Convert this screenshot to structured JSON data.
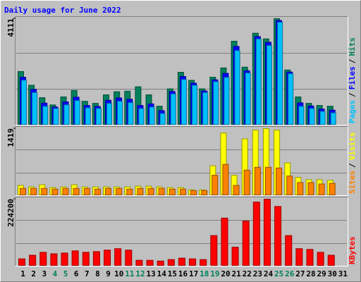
{
  "chart_data": [
    {
      "type": "bar",
      "title": "Daily usage for June 2022",
      "categories": [
        "1",
        "2",
        "3",
        "4",
        "5",
        "6",
        "7",
        "8",
        "9",
        "10",
        "11",
        "12",
        "13",
        "14",
        "15",
        "16",
        "17",
        "18",
        "19",
        "20",
        "21",
        "22",
        "23",
        "24",
        "25",
        "26",
        "27",
        "28",
        "29",
        "30",
        "31"
      ],
      "category_colors": [
        "#000000",
        "#000000",
        "#000000",
        "#00805c",
        "#00805c",
        "#000000",
        "#000000",
        "#000000",
        "#000000",
        "#000000",
        "#00805c",
        "#00805c",
        "#000000",
        "#000000",
        "#000000",
        "#000000",
        "#000000",
        "#00805c",
        "#00805c",
        "#000000",
        "#000000",
        "#000000",
        "#000000",
        "#000000",
        "#00805c",
        "#00805c",
        "#000000",
        "#000000",
        "#000000",
        "#000000",
        "#000000"
      ],
      "legend_separator": "/",
      "ylim": [
        0,
        4111
      ],
      "yticks": [
        4111
      ],
      "series": [
        {
          "name": "Hits",
          "color": "#00805c",
          "values": [
            2070,
            1540,
            1060,
            780,
            1090,
            1340,
            920,
            840,
            1170,
            1290,
            1310,
            1480,
            1170,
            730,
            1400,
            2040,
            1730,
            1400,
            1850,
            2210,
            3240,
            2240,
            3550,
            3330,
            4111,
            2130,
            1090,
            840,
            760,
            730,
            null
          ]
        },
        {
          "name": "Files",
          "color": "#0000ff",
          "values": [
            1850,
            1380,
            850,
            700,
            900,
            1080,
            760,
            720,
            960,
            1050,
            1000,
            760,
            820,
            560,
            1300,
            1880,
            1620,
            1320,
            1750,
            2000,
            3040,
            2100,
            3420,
            3200,
            4040,
            2050,
            860,
            740,
            620,
            580,
            null
          ]
        },
        {
          "name": "Pages",
          "color": "#00c0ff",
          "values": [
            1734,
            1259,
            727,
            643,
            783,
            951,
            671,
            643,
            839,
            923,
            867,
            643,
            699,
            448,
            1203,
            1762,
            1538,
            1259,
            1678,
            1846,
            2881,
            2014,
            3328,
            3077,
            3972,
            1986,
            727,
            643,
            531,
            475,
            null
          ]
        }
      ]
    },
    {
      "type": "bar",
      "ylim": [
        0,
        1419
      ],
      "yticks": [
        1419
      ],
      "series": [
        {
          "name": "Visits",
          "color": "#ffff00",
          "values": [
            216,
            185,
            231,
            170,
            185,
            231,
            185,
            185,
            185,
            185,
            185,
            200,
            200,
            185,
            170,
            170,
            123,
            123,
            632,
            1326,
            432,
            1203,
            1388,
            1419,
            1388,
            694,
            386,
            339,
            339,
            324,
            null
          ]
        },
        {
          "name": "Sites",
          "color": "#ff8000",
          "values": [
            154,
            154,
            154,
            139,
            154,
            154,
            154,
            139,
            154,
            154,
            139,
            154,
            154,
            154,
            139,
            139,
            108,
            108,
            432,
            663,
            216,
            540,
            601,
            601,
            586,
            416,
            278,
            278,
            247,
            262,
            null
          ]
        }
      ]
    },
    {
      "type": "bar",
      "ylim": [
        0,
        224200
      ],
      "yticks": [
        224200
      ],
      "series": [
        {
          "name": "KBytes",
          "color": "#ff0000",
          "values": [
            24370,
            36560,
            46300,
            41400,
            43870,
            51180,
            46300,
            48740,
            53610,
            58490,
            53610,
            19500,
            19500,
            17060,
            21930,
            26810,
            24370,
            21930,
            102350,
            160840,
            63360,
            151090,
            214450,
            224200,
            199830,
            102350,
            58490,
            56050,
            46300,
            36560,
            null
          ]
        }
      ]
    }
  ]
}
